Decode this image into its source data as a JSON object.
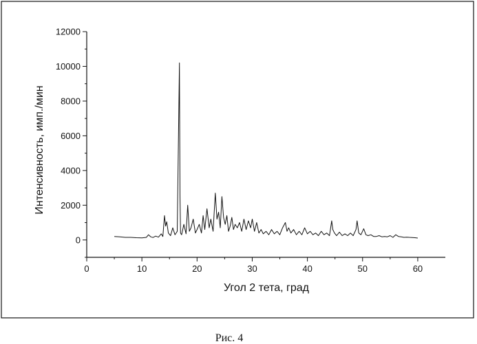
{
  "chart_data": {
    "type": "line",
    "title": "",
    "xlabel": "Угол 2 тета, град",
    "ylabel": "Интенсивность, имп./мин",
    "xlim": [
      0,
      65
    ],
    "ylim": [
      -1000,
      12000
    ],
    "xticks": [
      "0",
      "10",
      "20",
      "30",
      "40",
      "50",
      "60"
    ],
    "yticks": [
      "0",
      "2000",
      "4000",
      "6000",
      "8000",
      "10000",
      "12000"
    ],
    "grid": false,
    "legend": "none",
    "line_color": "#111111",
    "series": [
      {
        "x": [
          5.0,
          6.0,
          7.0,
          8.0,
          9.0,
          10.0,
          10.8,
          11.2,
          11.6,
          12.0,
          12.5,
          13.0,
          13.5,
          13.8,
          14.1,
          14.3,
          14.5,
          14.8,
          15.2,
          15.6,
          16.0,
          16.4,
          16.8,
          16.9,
          17.0,
          17.2,
          17.6,
          18.0,
          18.3,
          18.6,
          18.9,
          19.3,
          19.7,
          20.0,
          20.4,
          20.8,
          21.1,
          21.4,
          21.8,
          22.2,
          22.5,
          22.9,
          23.3,
          23.6,
          23.9,
          24.2,
          24.5,
          24.8,
          25.1,
          25.4,
          25.7,
          26.0,
          26.3,
          26.6,
          26.9,
          27.3,
          27.7,
          28.1,
          28.5,
          28.9,
          29.3,
          29.7,
          30.0,
          30.4,
          30.8,
          31.2,
          31.6,
          32.0,
          32.5,
          33.0,
          33.5,
          34.0,
          34.5,
          35.0,
          35.5,
          36.0,
          36.3,
          36.6,
          37.0,
          37.5,
          38.0,
          38.5,
          39.0,
          39.5,
          40.0,
          40.5,
          41.0,
          41.5,
          42.0,
          42.5,
          43.0,
          43.5,
          44.0,
          44.4,
          44.6,
          44.9,
          45.3,
          45.8,
          46.3,
          46.8,
          47.3,
          47.8,
          48.3,
          48.8,
          49.0,
          49.3,
          49.7,
          50.2,
          50.6,
          51.0,
          51.5,
          52.0,
          52.5,
          53.0,
          53.5,
          54.0,
          54.5,
          55.0,
          55.5,
          56.0,
          56.5,
          57.0,
          57.5,
          58.0,
          58.5,
          59.0,
          59.5,
          60.0
        ],
        "y": [
          200,
          180,
          150,
          150,
          130,
          120,
          150,
          300,
          180,
          140,
          220,
          160,
          350,
          200,
          1400,
          800,
          1050,
          400,
          250,
          700,
          300,
          500,
          10200,
          2500,
          400,
          300,
          900,
          350,
          2000,
          500,
          700,
          1200,
          400,
          600,
          900,
          400,
          1400,
          600,
          1800,
          700,
          1200,
          500,
          2700,
          1200,
          1600,
          700,
          2500,
          1300,
          900,
          1400,
          500,
          800,
          1300,
          600,
          900,
          700,
          1000,
          500,
          1200,
          600,
          1100,
          700,
          1200,
          500,
          1000,
          400,
          600,
          350,
          500,
          300,
          600,
          350,
          500,
          300,
          700,
          1000,
          500,
          700,
          400,
          600,
          300,
          500,
          300,
          700,
          350,
          500,
          300,
          400,
          250,
          500,
          300,
          400,
          250,
          1100,
          600,
          400,
          250,
          450,
          250,
          350,
          250,
          400,
          250,
          600,
          1100,
          400,
          300,
          650,
          300,
          250,
          300,
          200,
          200,
          250,
          180,
          200,
          180,
          250,
          150,
          300,
          200,
          180,
          150,
          160,
          150,
          140,
          130,
          110
        ]
      }
    ]
  },
  "caption": "Рис. 4"
}
